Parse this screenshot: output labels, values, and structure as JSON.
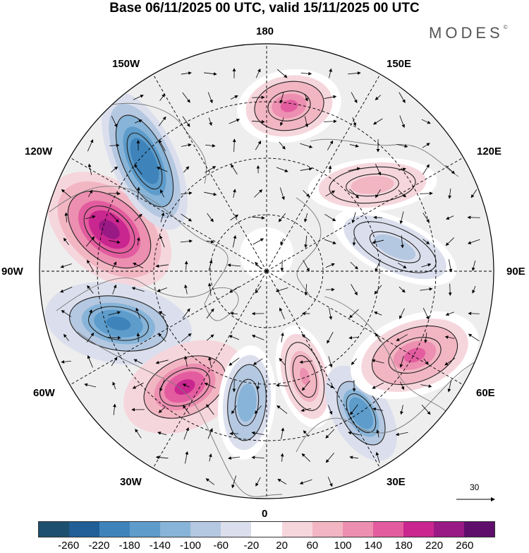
{
  "header": {
    "title": "Base 06/11/2025 00 UTC, valid 15/11/2025 00 UTC",
    "brand": "MODES",
    "brand_mark": "©"
  },
  "map": {
    "projection": "North Polar Stereographic",
    "lon_labels": {
      "n180": "180",
      "e150": "150E",
      "e120": "120E",
      "e90": "90E",
      "e60": "60E",
      "e30": "30E",
      "s0": "0",
      "w30": "30W",
      "w60": "60W",
      "w90": "90W",
      "w120": "120W",
      "w150": "150W"
    },
    "reference_vector": "30",
    "anomaly_centers": [
      {
        "id": "ne-pacific-high",
        "value": 240
      },
      {
        "id": "gulf-of-alaska-low",
        "value": -220
      },
      {
        "id": "north-america-low",
        "value": -200
      },
      {
        "id": "north-atlantic-high",
        "value": 200
      },
      {
        "id": "western-europe-low",
        "value": -140
      },
      {
        "id": "central-europe-high",
        "value": 120
      },
      {
        "id": "eastern-europe-low",
        "value": -180
      },
      {
        "id": "central-asia-high",
        "value": 150
      },
      {
        "id": "bering-high",
        "value": 140
      },
      {
        "id": "siberia-low",
        "value": -90
      },
      {
        "id": "east-siberia-high",
        "value": 80
      }
    ]
  },
  "colorbar": {
    "ticks": [
      "-260",
      "-220",
      "-180",
      "-140",
      "-100",
      "-60",
      "-20",
      "20",
      "60",
      "100",
      "140",
      "180",
      "220",
      "260"
    ],
    "colors": [
      "#1d4f6e",
      "#1f5f95",
      "#3e84bb",
      "#5d9ccb",
      "#87b4d8",
      "#b5c8e1",
      "#dbdfed",
      "#ffffff",
      "#f6d6dd",
      "#f2b6c3",
      "#ec8fb0",
      "#e35c9f",
      "#c9278f",
      "#9a1a85",
      "#5f0f6b"
    ]
  }
}
